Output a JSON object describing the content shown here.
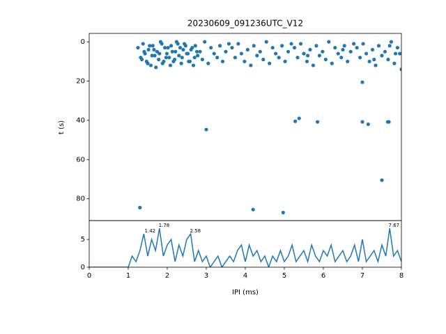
{
  "chart_data": [
    {
      "type": "scatter",
      "title": "20230609_091236UTC_V12",
      "y_label": "t (s)",
      "color": "#1f77b4",
      "xlim": [
        0,
        8
      ],
      "ylim": [
        91.1,
        -4.3
      ],
      "yticks": [
        0,
        20,
        40,
        60,
        80
      ],
      "x": [
        1.25,
        1.32,
        1.38,
        1.43,
        1.47,
        1.52,
        1.58,
        1.63,
        1.68,
        1.74,
        1.78,
        1.83,
        1.88,
        1.94,
        1.99,
        2.05,
        2.1,
        2.16,
        2.21,
        2.27,
        2.33,
        2.38,
        2.44,
        2.5,
        2.55,
        2.61,
        2.67,
        2.72,
        2.78,
        2.84,
        2.9,
        2.96,
        3.05,
        3.12,
        3.2,
        3.28,
        3.35,
        3.42,
        3.5,
        3.58,
        3.66,
        3.74,
        3.82,
        3.9,
        3.98,
        4.06,
        4.14,
        4.22,
        4.3,
        4.38,
        4.46,
        4.54,
        4.62,
        4.7,
        4.78,
        4.86,
        4.94,
        5.02,
        5.1,
        5.18,
        5.26,
        5.34,
        5.42,
        5.5,
        5.58,
        5.66,
        5.74,
        5.82,
        5.9,
        5.98,
        6.06,
        6.14,
        6.22,
        6.3,
        6.38,
        6.46,
        6.54,
        6.62,
        6.7,
        6.78,
        6.86,
        6.94,
        7.02,
        7.1,
        7.18,
        7.26,
        7.34,
        7.42,
        7.5,
        7.58,
        7.66,
        7.74,
        7.82,
        7.9,
        7.96,
        1.35,
        1.41,
        1.5,
        1.55,
        1.61,
        1.66,
        1.71,
        1.8,
        1.86,
        1.91,
        1.97,
        2.02,
        2.08,
        2.13,
        2.19,
        2.24,
        2.3,
        2.36,
        2.41,
        2.47,
        2.53,
        2.58,
        2.64,
        2.7,
        2.76,
        5.6,
        6.5,
        7.3,
        7.7,
        7.85,
        1.3,
        3.0,
        4.2,
        4.97,
        5.28,
        5.38,
        5.85,
        7.0,
        7.0,
        7.15,
        7.65,
        7.68,
        7.5,
        8.0
      ],
      "values": [
        3,
        8,
        1,
        6,
        10,
        4,
        12,
        2,
        7,
        5,
        9,
        0,
        11,
        3,
        6,
        8,
        2,
        10,
        5,
        1,
        3,
        8,
        1,
        6,
        10,
        4,
        12,
        2,
        7,
        5,
        9,
        0,
        11,
        3,
        6,
        8,
        2,
        10,
        5,
        1,
        3,
        8,
        1,
        6,
        10,
        4,
        12,
        2,
        7,
        5,
        9,
        0,
        11,
        3,
        6,
        8,
        2,
        10,
        5,
        1,
        3,
        8,
        1,
        6,
        10,
        4,
        12,
        2,
        7,
        5,
        9,
        0,
        11,
        3,
        6,
        8,
        2,
        10,
        5,
        1,
        3,
        8,
        1,
        6,
        10,
        4,
        12,
        2,
        7,
        5,
        9,
        0,
        11,
        3,
        6,
        9,
        5,
        11,
        2,
        7,
        4,
        13,
        6,
        1,
        10,
        8,
        3,
        12,
        5,
        9,
        0,
        7,
        11,
        4,
        2,
        6,
        10,
        3,
        8,
        5,
        7,
        4,
        9,
        2,
        6,
        84.5,
        44.7,
        85.5,
        87,
        40.5,
        39,
        40.8,
        20.6,
        40.8,
        42,
        40.8,
        40.8,
        70.5,
        14
      ]
    },
    {
      "type": "line",
      "x_label": "IPI (ms)",
      "color": "#1f77b4",
      "xlim": [
        0,
        8
      ],
      "ylim": [
        0,
        8.4
      ],
      "xticks": [
        0,
        1,
        2,
        3,
        4,
        5,
        6,
        7,
        8
      ],
      "yticks": [
        0,
        5
      ],
      "x": [
        0,
        0.1,
        0.2,
        0.3,
        0.4,
        0.5,
        0.6,
        0.7,
        0.8,
        0.9,
        1.0,
        1.1,
        1.2,
        1.3,
        1.4,
        1.5,
        1.6,
        1.7,
        1.8,
        1.9,
        2.0,
        2.1,
        2.2,
        2.3,
        2.4,
        2.5,
        2.6,
        2.7,
        2.8,
        2.9,
        3.0,
        3.1,
        3.2,
        3.3,
        3.4,
        3.5,
        3.6,
        3.7,
        3.8,
        3.9,
        4.0,
        4.1,
        4.2,
        4.3,
        4.4,
        4.5,
        4.6,
        4.7,
        4.8,
        4.9,
        5.0,
        5.1,
        5.2,
        5.3,
        5.4,
        5.5,
        5.6,
        5.7,
        5.8,
        5.9,
        6.0,
        6.1,
        6.2,
        6.3,
        6.4,
        6.5,
        6.6,
        6.7,
        6.8,
        6.9,
        7.0,
        7.1,
        7.2,
        7.3,
        7.4,
        7.5,
        7.6,
        7.7,
        7.8,
        7.9,
        8.0
      ],
      "values": [
        0,
        0,
        0,
        0,
        0,
        0,
        0,
        0,
        0,
        0,
        0,
        2,
        1,
        3,
        6,
        2,
        5,
        3,
        7,
        2,
        4,
        5,
        1,
        4,
        2,
        5,
        6,
        1,
        3,
        1,
        2,
        0,
        1,
        2,
        0,
        1,
        2,
        1,
        3,
        4,
        1,
        4,
        2,
        3,
        1,
        2,
        0,
        2,
        1,
        3,
        1,
        2,
        4,
        1,
        2,
        3,
        1,
        4,
        2,
        1,
        3,
        2,
        4,
        1,
        2,
        3,
        1,
        2,
        4,
        1,
        5,
        1,
        2,
        3,
        1,
        4,
        2,
        7,
        2,
        3,
        1
      ],
      "annotations": [
        {
          "x": 1.42,
          "y": 6,
          "label": "1.42"
        },
        {
          "x": 1.78,
          "y": 7,
          "label": "1.78"
        },
        {
          "x": 2.58,
          "y": 6,
          "label": "2.58"
        },
        {
          "x": 7.67,
          "y": 7,
          "label": "7.67"
        }
      ]
    }
  ]
}
